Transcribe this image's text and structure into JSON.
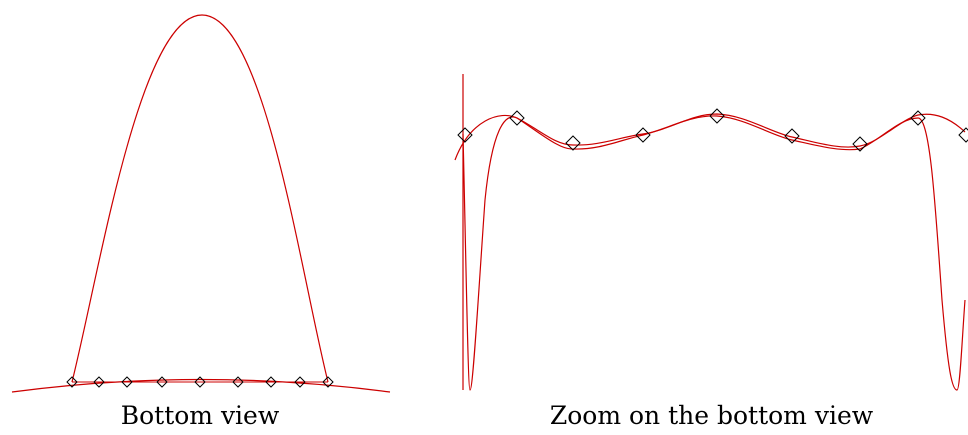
{
  "panels": [
    {
      "caption": "Bottom view",
      "curve_color": "#cc0000",
      "marker_shape": "diamond",
      "marker_color": "#000000"
    },
    {
      "caption": "Zoom on the bottom view",
      "curve_color": "#cc0000",
      "marker_shape": "diamond",
      "marker_color": "#000000"
    }
  ]
}
